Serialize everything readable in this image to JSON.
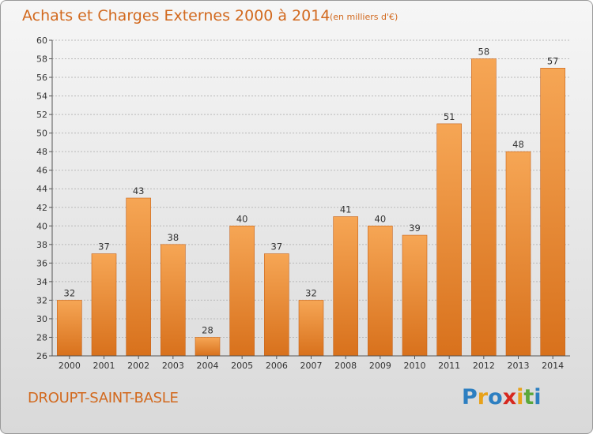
{
  "title": "Achats et Charges Externes 2000 à 2014",
  "subtitle": "(en milliers d'€)",
  "commune": "DROUPT-SAINT-BASLE",
  "logo": {
    "letters": [
      "P",
      "r",
      "o",
      "x",
      "i",
      "t",
      "i"
    ],
    "colors": [
      "#2d7fc1",
      "#e8a21a",
      "#2d7fc1",
      "#d6281f",
      "#e8a21a",
      "#5aa83a",
      "#2d7fc1"
    ]
  },
  "colors": {
    "bar_top": "#f6a655",
    "bar_bottom": "#d8711c",
    "bar_edge": "#c8641a"
  },
  "chart_data": {
    "type": "bar",
    "title": "Achats et Charges Externes 2000 à 2014",
    "subtitle": "(en milliers d'€)",
    "categories": [
      "2000",
      "2001",
      "2002",
      "2003",
      "2004",
      "2005",
      "2006",
      "2007",
      "2008",
      "2009",
      "2010",
      "2011",
      "2012",
      "2013",
      "2014"
    ],
    "values": [
      32,
      37,
      43,
      38,
      28,
      40,
      37,
      32,
      41,
      40,
      39,
      51,
      58,
      48,
      57
    ],
    "ylim": [
      26,
      60
    ],
    "yticks": [
      26,
      28,
      30,
      32,
      34,
      36,
      38,
      40,
      42,
      44,
      46,
      48,
      50,
      52,
      54,
      56,
      58,
      60
    ],
    "grid": true,
    "xlabel": "",
    "ylabel": ""
  }
}
